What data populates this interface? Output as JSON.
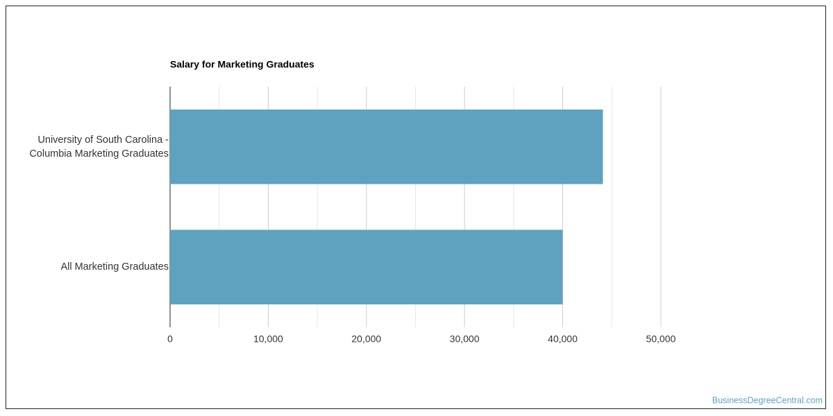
{
  "chart_data": {
    "type": "barh",
    "title": "Salary for Marketing Graduates",
    "categories": [
      "University of South Carolina - Columbia Marketing Graduates",
      "All Marketing Graduates"
    ],
    "values": [
      44100,
      40000
    ],
    "color": "#5fa2bf",
    "xlim": [
      0,
      50000
    ],
    "xticks": [
      0,
      {
        "value": 10000,
        "label": "10,000"
      },
      {
        "value": 20000,
        "label": "20,000"
      },
      {
        "value": 30000,
        "label": "30,000"
      },
      {
        "value": 40000,
        "label": "40,000"
      },
      {
        "value": 50000,
        "label": "50,000"
      }
    ],
    "minor_xticks": [
      5000,
      15000,
      25000,
      35000,
      45000
    ],
    "grid": true
  },
  "footer": {
    "source": "BusinessDegreeCentral.com"
  }
}
